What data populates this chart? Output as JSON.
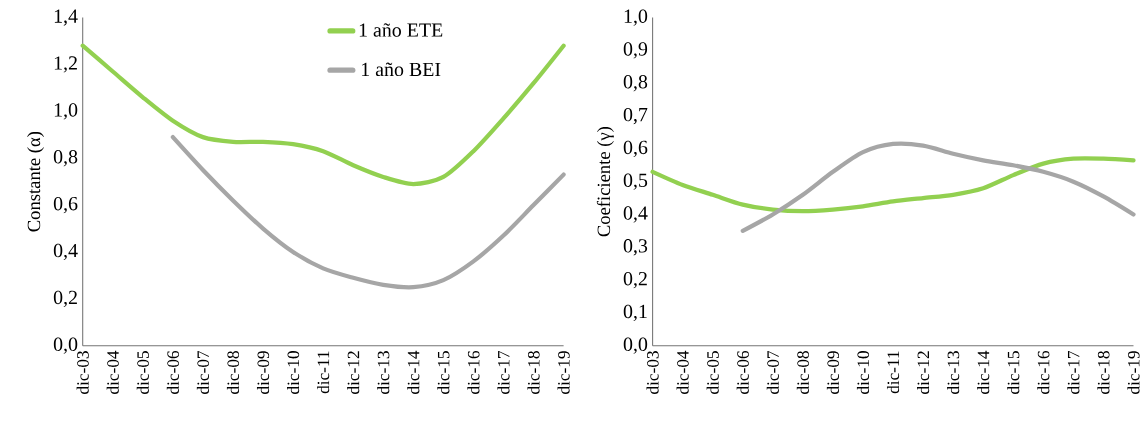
{
  "chart_data": [
    {
      "type": "line",
      "ylabel": "Constante (α)",
      "categories": [
        "dic-03",
        "dic-04",
        "dic-05",
        "dic-06",
        "dic-07",
        "dic-08",
        "dic-09",
        "dic-10",
        "dic-11",
        "dic-12",
        "dic-13",
        "dic-14",
        "dic-15",
        "dic-16",
        "dic-17",
        "dic-18",
        "dic-19"
      ],
      "series": [
        {
          "name": "1 año ETE",
          "color": "#92d050",
          "values": [
            1.28,
            1.17,
            1.06,
            0.96,
            0.89,
            0.87,
            0.87,
            0.86,
            0.83,
            0.77,
            0.72,
            0.69,
            0.72,
            0.83,
            0.97,
            1.12,
            1.28
          ]
        },
        {
          "name": "1 año BEI",
          "color": "#a6a6a6",
          "values": [
            null,
            null,
            null,
            0.89,
            0.75,
            0.62,
            0.5,
            0.4,
            0.33,
            0.29,
            0.26,
            0.25,
            0.28,
            0.36,
            0.47,
            0.6,
            0.73
          ]
        }
      ],
      "ylim": [
        0,
        1.4
      ],
      "yticks": [
        {
          "value": 0,
          "label": "0,0"
        },
        {
          "value": 0.2,
          "label": "0,2"
        },
        {
          "value": 0.4,
          "label": "0,4"
        },
        {
          "value": 0.6,
          "label": "0,6"
        },
        {
          "value": 0.8,
          "label": "0,8"
        },
        {
          "value": 1.0,
          "label": "1,0"
        },
        {
          "value": 1.2,
          "label": "1,2"
        },
        {
          "value": 1.4,
          "label": "1,4"
        }
      ],
      "grid": false,
      "legend": "top",
      "marker": "none",
      "line_style": "solid"
    },
    {
      "type": "line",
      "ylabel": "Coeficiente (γ)",
      "categories": [
        "dic-03",
        "dic-04",
        "dic-05",
        "dic-06",
        "dic-07",
        "dic-08",
        "dic-09",
        "dic-10",
        "dic-11",
        "dic-12",
        "dic-13",
        "dic-14",
        "dic-15",
        "dic-16",
        "dic-17",
        "dic-18",
        "dic-19"
      ],
      "series": [
        {
          "color": "#92d050",
          "values": [
            0.53,
            0.49,
            0.46,
            0.43,
            0.415,
            0.41,
            0.415,
            0.425,
            0.44,
            0.45,
            0.46,
            0.48,
            0.52,
            0.555,
            0.57,
            0.57,
            0.565
          ]
        },
        {
          "color": "#a6a6a6",
          "values": [
            null,
            null,
            null,
            0.35,
            0.4,
            0.46,
            0.53,
            0.59,
            0.615,
            0.61,
            0.585,
            0.565,
            0.55,
            0.53,
            0.5,
            0.455,
            0.4
          ]
        }
      ],
      "ylim": [
        0,
        1.0
      ],
      "yticks": [
        {
          "value": 0,
          "label": "0,0"
        },
        {
          "value": 0.1,
          "label": "0,1"
        },
        {
          "value": 0.2,
          "label": "0,2"
        },
        {
          "value": 0.3,
          "label": "0,3"
        },
        {
          "value": 0.4,
          "label": "0,4"
        },
        {
          "value": 0.5,
          "label": "0,5"
        },
        {
          "value": 0.6,
          "label": "0,6"
        },
        {
          "value": 0.7,
          "label": "0,7"
        },
        {
          "value": 0.8,
          "label": "0,8"
        },
        {
          "value": 0.9,
          "label": "0,9"
        },
        {
          "value": 1.0,
          "label": "1,0"
        }
      ],
      "grid": false,
      "legend": false,
      "marker": "none",
      "line_style": "solid"
    }
  ]
}
